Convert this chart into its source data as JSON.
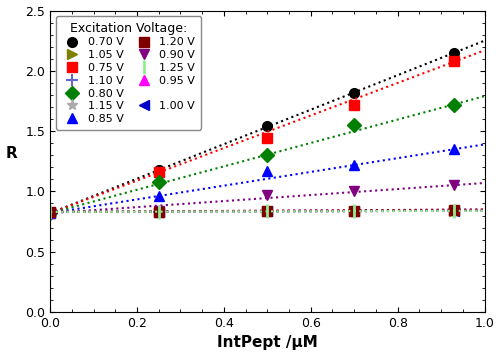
{
  "title": "",
  "xlabel": "IntPept /μM",
  "ylabel": "R",
  "xlim": [
    0,
    1.0
  ],
  "ylim": [
    0.0,
    2.5
  ],
  "xticks": [
    0.0,
    0.2,
    0.4,
    0.6,
    0.8,
    1.0
  ],
  "yticks": [
    0.0,
    0.5,
    1.0,
    1.5,
    2.0,
    2.5
  ],
  "series": [
    {
      "label": "0.70 V",
      "color": "#000000",
      "marker": "o",
      "x": [
        0.0,
        0.25,
        0.5,
        0.7,
        0.93
      ],
      "y": [
        0.82,
        1.18,
        1.54,
        1.82,
        2.15
      ],
      "slope": 1.43,
      "intercept": 0.82
    },
    {
      "label": "0.75 V",
      "color": "#ff0000",
      "marker": "s",
      "x": [
        0.0,
        0.25,
        0.5,
        0.7,
        0.93
      ],
      "y": [
        0.82,
        1.16,
        1.44,
        1.72,
        2.08
      ],
      "slope": 1.35,
      "intercept": 0.82
    },
    {
      "label": "0.80 V",
      "color": "#008000",
      "marker": "D",
      "x": [
        0.0,
        0.25,
        0.5,
        0.7,
        0.93
      ],
      "y": [
        0.82,
        1.08,
        1.3,
        1.55,
        1.72
      ],
      "slope": 0.97,
      "intercept": 0.82
    },
    {
      "label": "0.85 V",
      "color": "#0000ff",
      "marker": "^",
      "x": [
        0.0,
        0.25,
        0.5,
        0.7,
        0.93
      ],
      "y": [
        0.82,
        0.96,
        1.17,
        1.22,
        1.35
      ],
      "slope": 0.57,
      "intercept": 0.82
    },
    {
      "label": "0.90 V",
      "color": "#800080",
      "marker": "v",
      "x": [
        0.0,
        0.25,
        0.5,
        0.7,
        0.93
      ],
      "y": [
        0.82,
        0.84,
        0.97,
        1.0,
        1.05
      ],
      "slope": 0.25,
      "intercept": 0.82
    },
    {
      "label": "0.95 V",
      "color": "#ff00ff",
      "marker": "^",
      "x": [
        0.0,
        0.25,
        0.5,
        0.7,
        0.93
      ],
      "y": [
        0.83,
        0.83,
        0.84,
        0.84,
        0.85
      ],
      "slope": 0.02,
      "intercept": 0.83
    },
    {
      "label": "1.00 V",
      "color": "#0000cd",
      "marker": "<",
      "x": [
        0.0,
        0.25,
        0.5,
        0.7,
        0.93
      ],
      "y": [
        0.83,
        0.83,
        0.84,
        0.84,
        0.84
      ],
      "slope": 0.01,
      "intercept": 0.83
    },
    {
      "label": "1.05 V",
      "color": "#808000",
      "marker": ">",
      "x": [
        0.0,
        0.25,
        0.5,
        0.7,
        0.93
      ],
      "y": [
        0.83,
        0.83,
        0.84,
        0.84,
        0.84
      ],
      "slope": 0.01,
      "intercept": 0.83
    },
    {
      "label": "1.10 V",
      "color": "#6666cc",
      "marker": "plus",
      "x": [
        0.0,
        0.25,
        0.5,
        0.7,
        0.93
      ],
      "y": [
        0.83,
        0.83,
        0.84,
        0.84,
        0.84
      ],
      "slope": 0.01,
      "intercept": 0.83
    },
    {
      "label": "1.15 V",
      "color": "#aaaaaa",
      "marker": "*",
      "x": [
        0.0,
        0.25,
        0.5,
        0.7,
        0.93
      ],
      "y": [
        0.83,
        0.83,
        0.84,
        0.84,
        0.84
      ],
      "slope": 0.01,
      "intercept": 0.83
    },
    {
      "label": "1.20 V",
      "color": "#800000",
      "marker": "s",
      "x": [
        0.0,
        0.25,
        0.5,
        0.7,
        0.93
      ],
      "y": [
        0.83,
        0.83,
        0.84,
        0.84,
        0.85
      ],
      "slope": 0.02,
      "intercept": 0.83
    },
    {
      "label": "1.25 V",
      "color": "#90ee90",
      "marker": "vline",
      "x": [
        0.0,
        0.25,
        0.5,
        0.7,
        0.93
      ],
      "y": [
        0.83,
        0.83,
        0.84,
        0.84,
        0.84
      ],
      "slope": 0.01,
      "intercept": 0.83
    }
  ],
  "legend_title": "Excitation Voltage:",
  "bg_color": "#ffffff",
  "figsize": [
    5.0,
    3.56
  ],
  "dpi": 100
}
